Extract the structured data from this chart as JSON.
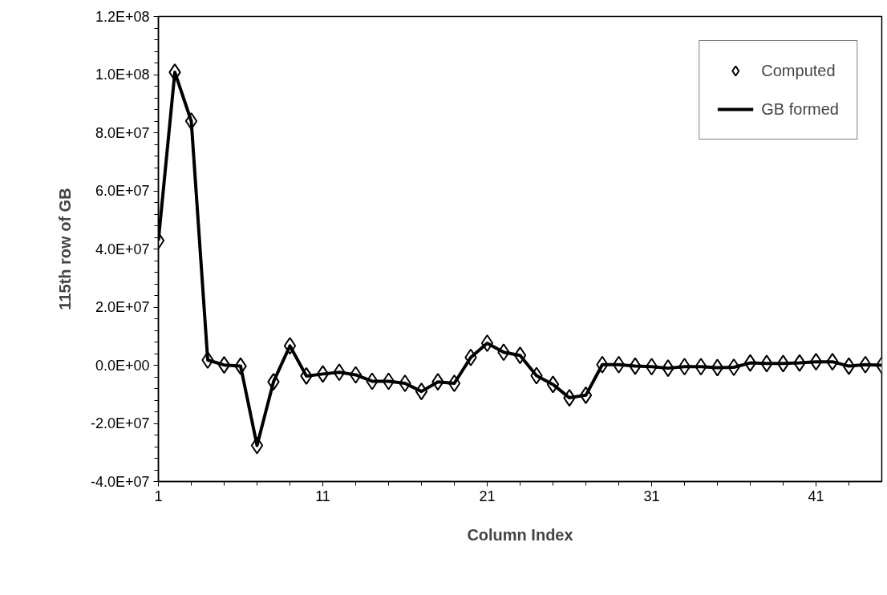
{
  "chart_data": {
    "type": "line",
    "xlabel": "Column Index",
    "ylabel": "115th row of GB",
    "x": [
      1,
      2,
      3,
      4,
      5,
      6,
      7,
      8,
      9,
      10,
      11,
      12,
      13,
      14,
      15,
      16,
      17,
      18,
      19,
      20,
      21,
      22,
      23,
      24,
      25,
      26,
      27,
      28,
      29,
      30,
      31,
      32,
      33,
      34,
      35,
      36,
      37,
      38,
      39,
      40,
      41,
      42,
      43,
      44,
      45
    ],
    "series": [
      {
        "name": "Computed",
        "type": "scatter",
        "marker": "diamond",
        "color": "#000000",
        "values": [
          42900000,
          100800000,
          84000000,
          1800000,
          100000,
          -300000,
          -27600000,
          -5700000,
          6700000,
          -3700000,
          -3000000,
          -2400000,
          -3300000,
          -5500000,
          -5500000,
          -6200000,
          -9000000,
          -5700000,
          -6200000,
          2700000,
          7600000,
          4500000,
          3400000,
          -3600000,
          -6600000,
          -11200000,
          -10300000,
          200000,
          200000,
          -300000,
          -500000,
          -1000000,
          -500000,
          -500000,
          -800000,
          -700000,
          800000,
          600000,
          600000,
          800000,
          1200000,
          1200000,
          -300000,
          200000,
          0
        ]
      },
      {
        "name": "GB formed",
        "line_style": "solid",
        "color": "#000000",
        "values": [
          42900000,
          100800000,
          84000000,
          1800000,
          100000,
          -300000,
          -27600000,
          -5700000,
          6700000,
          -3700000,
          -3000000,
          -2400000,
          -3300000,
          -5500000,
          -5500000,
          -6200000,
          -9000000,
          -5700000,
          -6200000,
          2700000,
          7600000,
          4500000,
          3400000,
          -3600000,
          -6600000,
          -11200000,
          -10300000,
          200000,
          200000,
          -300000,
          -500000,
          -1000000,
          -500000,
          -500000,
          -800000,
          -700000,
          800000,
          600000,
          600000,
          800000,
          1200000,
          1200000,
          -300000,
          200000,
          0
        ]
      }
    ],
    "xlim": [
      1,
      45
    ],
    "xticks": [
      1,
      11,
      21,
      31,
      41
    ],
    "ylim": [
      -40000000,
      120000000
    ],
    "yticks": [
      {
        "value": -40000000,
        "label": "-4.0E+07"
      },
      {
        "value": -20000000,
        "label": "-2.0E+07"
      },
      {
        "value": 0,
        "label": "0.0E+00"
      },
      {
        "value": 20000000,
        "label": "2.0E+07"
      },
      {
        "value": 40000000,
        "label": "4.0E+07"
      },
      {
        "value": 60000000,
        "label": "6.0E+07"
      },
      {
        "value": 80000000,
        "label": "8.0E+07"
      },
      {
        "value": 100000000,
        "label": "1.0E+08"
      },
      {
        "value": 120000000,
        "label": "1.2E+08"
      }
    ],
    "grid": false,
    "legend": "top right"
  }
}
